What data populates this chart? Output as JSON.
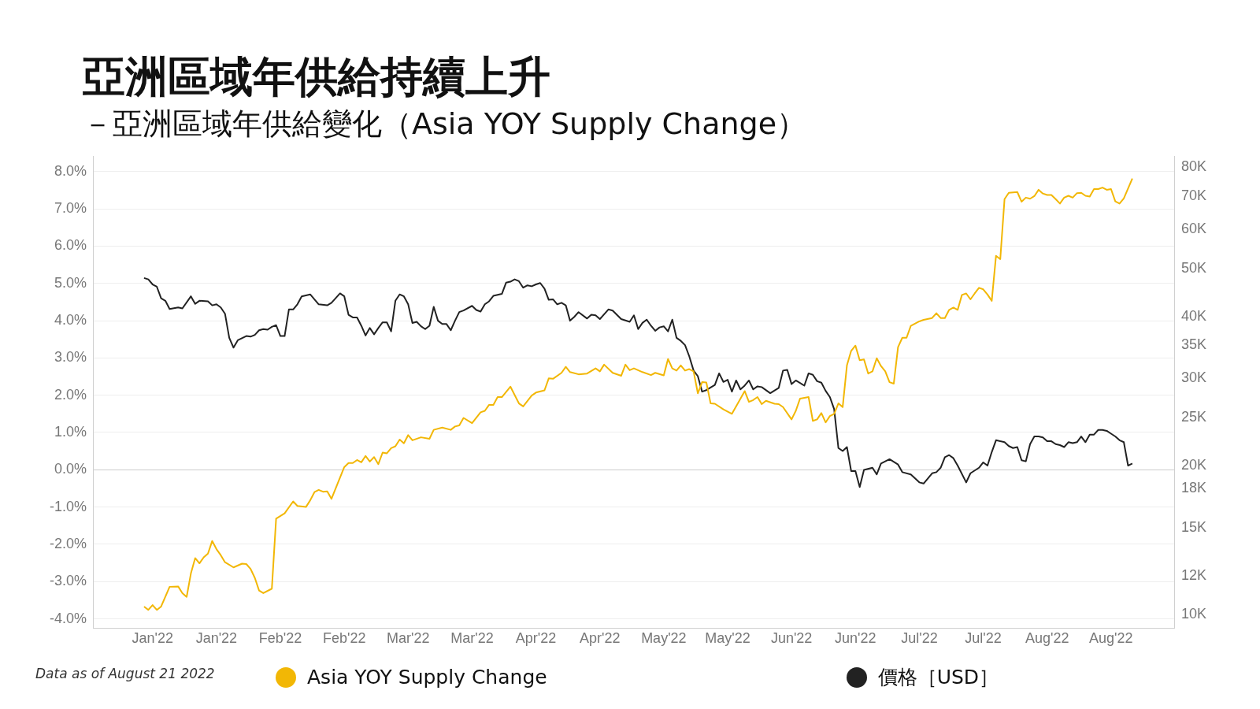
{
  "chart_data": {
    "type": "line",
    "title": "亞洲區域年供給持續上升",
    "subtitle": "－亞洲區域年供給變化（Asia YOY Supply Change）",
    "annotations": [
      "Data as of August 21 2022"
    ],
    "xlim": [
      "2021-12-20",
      "2022-08-31"
    ],
    "xticks": [
      {
        "value": "2022-01-03",
        "label": "Jan'22"
      },
      {
        "value": "2022-01-18",
        "label": "Jan'22"
      },
      {
        "value": "2022-02-02",
        "label": "Feb'22"
      },
      {
        "value": "2022-02-17",
        "label": "Feb'22"
      },
      {
        "value": "2022-03-04",
        "label": "Mar'22"
      },
      {
        "value": "2022-03-19",
        "label": "Mar'22"
      },
      {
        "value": "2022-04-03",
        "label": "Apr'22"
      },
      {
        "value": "2022-04-18",
        "label": "Apr'22"
      },
      {
        "value": "2022-05-03",
        "label": "May'22"
      },
      {
        "value": "2022-05-18",
        "label": "May'22"
      },
      {
        "value": "2022-06-02",
        "label": "Jun'22"
      },
      {
        "value": "2022-06-17",
        "label": "Jun'22"
      },
      {
        "value": "2022-07-02",
        "label": "Jul'22"
      },
      {
        "value": "2022-07-17",
        "label": "Jul'22"
      },
      {
        "value": "2022-08-01",
        "label": "Aug'22"
      },
      {
        "value": "2022-08-16",
        "label": "Aug'22"
      }
    ],
    "ylim": [
      -4.25,
      8.4
    ],
    "yticks": [
      {
        "value": -4,
        "label": "-4.0%"
      },
      {
        "value": -3,
        "label": "-3.0%"
      },
      {
        "value": -2,
        "label": "-2.0%"
      },
      {
        "value": -1,
        "label": "-1.0%"
      },
      {
        "value": 0,
        "label": "0.0%"
      },
      {
        "value": 1,
        "label": "1.0%"
      },
      {
        "value": 2,
        "label": "2.0%"
      },
      {
        "value": 3,
        "label": "3.0%"
      },
      {
        "value": 4,
        "label": "4.0%"
      },
      {
        "value": 5,
        "label": "5.0%"
      },
      {
        "value": 6,
        "label": "6.0%"
      },
      {
        "value": 7,
        "label": "7.0%"
      },
      {
        "value": 8,
        "label": "8.0%"
      }
    ],
    "y2lim": [
      9400,
      84000
    ],
    "y2ticks": [
      {
        "value": 10000,
        "label": "10K"
      },
      {
        "value": 12000,
        "label": "12K"
      },
      {
        "value": 15000,
        "label": "15K"
      },
      {
        "value": 18000,
        "label": "18K"
      },
      {
        "value": 20000,
        "label": "20K"
      },
      {
        "value": 25000,
        "label": "25K"
      },
      {
        "value": 30000,
        "label": "30K"
      },
      {
        "value": 35000,
        "label": "35K"
      },
      {
        "value": 40000,
        "label": "40K"
      },
      {
        "value": 50000,
        "label": "50K"
      },
      {
        "value": 60000,
        "label": "60K"
      },
      {
        "value": 70000,
        "label": "70K"
      },
      {
        "value": 80000,
        "label": "80K"
      }
    ],
    "log": "y2",
    "grid": "y",
    "legend": "bottom",
    "marker": "none",
    "line_style": "solid",
    "series": [
      {
        "name": "Asia YOY Supply Change",
        "color": "#f2b705",
        "x": [
          "2022-01-01",
          "2022-01-02",
          "2022-01-03",
          "2022-01-04",
          "2022-01-05",
          "2022-01-07",
          "2022-01-09",
          "2022-01-10",
          "2022-01-11",
          "2022-01-12",
          "2022-01-13",
          "2022-01-14",
          "2022-01-15",
          "2022-01-16",
          "2022-01-17",
          "2022-01-18",
          "2022-01-19",
          "2022-01-20",
          "2022-01-22",
          "2022-01-24",
          "2022-01-25",
          "2022-01-26",
          "2022-01-27",
          "2022-01-28",
          "2022-01-29",
          "2022-01-31",
          "2022-02-01",
          "2022-02-03",
          "2022-02-05",
          "2022-02-06",
          "2022-02-08",
          "2022-02-09",
          "2022-02-10",
          "2022-02-11",
          "2022-02-12",
          "2022-02-13",
          "2022-02-14",
          "2022-02-17",
          "2022-02-18",
          "2022-02-19",
          "2022-02-20",
          "2022-02-21",
          "2022-02-22",
          "2022-02-23",
          "2022-02-24",
          "2022-02-25",
          "2022-02-26",
          "2022-02-27",
          "2022-02-28",
          "2022-03-01",
          "2022-03-02",
          "2022-03-03",
          "2022-03-04",
          "2022-03-05",
          "2022-03-07",
          "2022-03-09",
          "2022-03-10",
          "2022-03-12",
          "2022-03-14",
          "2022-03-15",
          "2022-03-16",
          "2022-03-17",
          "2022-03-19",
          "2022-03-21",
          "2022-03-22",
          "2022-03-23",
          "2022-03-24",
          "2022-03-25",
          "2022-03-26",
          "2022-03-28",
          "2022-03-30",
          "2022-03-31",
          "2022-04-02",
          "2022-04-03",
          "2022-04-05",
          "2022-04-06",
          "2022-04-07",
          "2022-04-09",
          "2022-04-10",
          "2022-04-11",
          "2022-04-13",
          "2022-04-15",
          "2022-04-17",
          "2022-04-18",
          "2022-04-19",
          "2022-04-21",
          "2022-04-23",
          "2022-04-24",
          "2022-04-25",
          "2022-04-26",
          "2022-04-28",
          "2022-04-30",
          "2022-05-01",
          "2022-05-03",
          "2022-05-04",
          "2022-05-05",
          "2022-05-06",
          "2022-05-07",
          "2022-05-08",
          "2022-05-09",
          "2022-05-10",
          "2022-05-11",
          "2022-05-12",
          "2022-05-13",
          "2022-05-14",
          "2022-05-15",
          "2022-05-17",
          "2022-05-19",
          "2022-05-20",
          "2022-05-22",
          "2022-05-23",
          "2022-05-24",
          "2022-05-25",
          "2022-05-26",
          "2022-05-27",
          "2022-05-29",
          "2022-05-30",
          "2022-05-31",
          "2022-06-02",
          "2022-06-03",
          "2022-06-04",
          "2022-06-06",
          "2022-06-07",
          "2022-06-08",
          "2022-06-09",
          "2022-06-10",
          "2022-06-11",
          "2022-06-12",
          "2022-06-13",
          "2022-06-14",
          "2022-06-15",
          "2022-06-16",
          "2022-06-17",
          "2022-06-18",
          "2022-06-19",
          "2022-06-20",
          "2022-06-21",
          "2022-06-22",
          "2022-06-23",
          "2022-06-24",
          "2022-06-25",
          "2022-06-26",
          "2022-06-27",
          "2022-06-28",
          "2022-06-29",
          "2022-06-30",
          "2022-07-02",
          "2022-07-03",
          "2022-07-05",
          "2022-07-06",
          "2022-07-07",
          "2022-07-08",
          "2022-07-09",
          "2022-07-10",
          "2022-07-11",
          "2022-07-12",
          "2022-07-13",
          "2022-07-14",
          "2022-07-15",
          "2022-07-16",
          "2022-07-17",
          "2022-07-18",
          "2022-07-19",
          "2022-07-20",
          "2022-07-21",
          "2022-07-22",
          "2022-07-23",
          "2022-07-25",
          "2022-07-26",
          "2022-07-27",
          "2022-07-28",
          "2022-07-29",
          "2022-07-30",
          "2022-07-31",
          "2022-08-01",
          "2022-08-02",
          "2022-08-03",
          "2022-08-04",
          "2022-08-05",
          "2022-08-06",
          "2022-08-07",
          "2022-08-08",
          "2022-08-09",
          "2022-08-10",
          "2022-08-11",
          "2022-08-12",
          "2022-08-13",
          "2022-08-14",
          "2022-08-15",
          "2022-08-16",
          "2022-08-17",
          "2022-08-18",
          "2022-08-19",
          "2022-08-21"
        ],
        "values": [
          -3.67,
          -3.76,
          -3.63,
          -3.76,
          -3.67,
          -3.14,
          -3.13,
          -3.31,
          -3.41,
          -2.78,
          -2.37,
          -2.51,
          -2.35,
          -2.25,
          -1.91,
          -2.13,
          -2.29,
          -2.48,
          -2.62,
          -2.52,
          -2.53,
          -2.66,
          -2.9,
          -3.24,
          -3.31,
          -3.19,
          -1.31,
          -1.17,
          -0.85,
          -0.97,
          -1.0,
          -0.82,
          -0.6,
          -0.54,
          -0.59,
          -0.58,
          -0.78,
          0.07,
          0.18,
          0.18,
          0.26,
          0.2,
          0.37,
          0.22,
          0.34,
          0.15,
          0.46,
          0.44,
          0.58,
          0.63,
          0.81,
          0.71,
          0.93,
          0.79,
          0.87,
          0.83,
          1.07,
          1.13,
          1.07,
          1.16,
          1.19,
          1.39,
          1.25,
          1.54,
          1.58,
          1.74,
          1.74,
          1.95,
          1.95,
          2.23,
          1.78,
          1.7,
          1.99,
          2.07,
          2.13,
          2.45,
          2.44,
          2.6,
          2.76,
          2.62,
          2.56,
          2.58,
          2.72,
          2.64,
          2.82,
          2.6,
          2.52,
          2.82,
          2.67,
          2.72,
          2.62,
          2.54,
          2.6,
          2.53,
          2.97,
          2.72,
          2.66,
          2.8,
          2.66,
          2.7,
          2.64,
          2.05,
          2.35,
          2.34,
          1.78,
          1.77,
          1.62,
          1.5,
          1.7,
          2.11,
          1.82,
          1.87,
          1.95,
          1.76,
          1.85,
          1.77,
          1.76,
          1.68,
          1.35,
          1.58,
          1.91,
          1.95,
          1.31,
          1.35,
          1.52,
          1.27,
          1.44,
          1.5,
          1.78,
          1.68,
          2.8,
          3.19,
          3.33,
          2.94,
          2.96,
          2.58,
          2.64,
          2.99,
          2.78,
          2.64,
          2.35,
          2.31,
          3.29,
          3.54,
          3.54,
          3.86,
          3.98,
          4.02,
          4.07,
          4.2,
          4.07,
          4.07,
          4.29,
          4.35,
          4.29,
          4.69,
          4.73,
          4.57,
          4.73,
          4.88,
          4.84,
          4.7,
          4.53,
          5.74,
          5.65,
          7.26,
          7.43,
          7.45,
          7.19,
          7.3,
          7.27,
          7.34,
          7.51,
          7.41,
          7.37,
          7.37,
          7.26,
          7.14,
          7.3,
          7.35,
          7.3,
          7.42,
          7.43,
          7.35,
          7.33,
          7.53,
          7.53,
          7.57,
          7.51,
          7.53,
          7.2,
          7.14,
          7.28,
          7.81
        ]
      },
      {
        "name": "價格［USD］",
        "color": "#222222",
        "axis": "y2",
        "x": [
          "2022-01-01",
          "2022-01-02",
          "2022-01-03",
          "2022-01-04",
          "2022-01-05",
          "2022-01-06",
          "2022-01-07",
          "2022-01-09",
          "2022-01-10",
          "2022-01-12",
          "2022-01-13",
          "2022-01-14",
          "2022-01-16",
          "2022-01-17",
          "2022-01-18",
          "2022-01-19",
          "2022-01-20",
          "2022-01-21",
          "2022-01-22",
          "2022-01-23",
          "2022-01-25",
          "2022-01-26",
          "2022-01-27",
          "2022-01-28",
          "2022-01-29",
          "2022-01-30",
          "2022-01-31",
          "2022-02-01",
          "2022-02-02",
          "2022-02-03",
          "2022-02-04",
          "2022-02-05",
          "2022-02-06",
          "2022-02-07",
          "2022-02-09",
          "2022-02-11",
          "2022-02-13",
          "2022-02-14",
          "2022-02-16",
          "2022-02-17",
          "2022-02-18",
          "2022-02-19",
          "2022-02-20",
          "2022-02-21",
          "2022-02-22",
          "2022-02-23",
          "2022-02-24",
          "2022-02-25",
          "2022-02-26",
          "2022-02-27",
          "2022-02-28",
          "2022-03-01",
          "2022-03-02",
          "2022-03-03",
          "2022-03-04",
          "2022-03-05",
          "2022-03-06",
          "2022-03-07",
          "2022-03-08",
          "2022-03-09",
          "2022-03-10",
          "2022-03-11",
          "2022-03-12",
          "2022-03-13",
          "2022-03-14",
          "2022-03-15",
          "2022-03-16",
          "2022-03-17",
          "2022-03-19",
          "2022-03-20",
          "2022-03-21",
          "2022-03-22",
          "2022-03-23",
          "2022-03-24",
          "2022-03-26",
          "2022-03-27",
          "2022-03-28",
          "2022-03-29",
          "2022-03-30",
          "2022-03-31",
          "2022-04-01",
          "2022-04-02",
          "2022-04-03",
          "2022-04-04",
          "2022-04-05",
          "2022-04-06",
          "2022-04-07",
          "2022-04-08",
          "2022-04-09",
          "2022-04-10",
          "2022-04-11",
          "2022-04-12",
          "2022-04-13",
          "2022-04-15",
          "2022-04-16",
          "2022-04-17",
          "2022-04-18",
          "2022-04-20",
          "2022-04-21",
          "2022-04-23",
          "2022-04-25",
          "2022-04-26",
          "2022-04-27",
          "2022-04-28",
          "2022-04-29",
          "2022-04-30",
          "2022-05-01",
          "2022-05-02",
          "2022-05-03",
          "2022-05-04",
          "2022-05-05",
          "2022-05-06",
          "2022-05-07",
          "2022-05-08",
          "2022-05-09",
          "2022-05-10",
          "2022-05-11",
          "2022-05-12",
          "2022-05-13",
          "2022-05-15",
          "2022-05-16",
          "2022-05-17",
          "2022-05-18",
          "2022-05-19",
          "2022-05-20",
          "2022-05-21",
          "2022-05-22",
          "2022-05-23",
          "2022-05-24",
          "2022-05-25",
          "2022-05-26",
          "2022-05-28",
          "2022-05-30",
          "2022-05-31",
          "2022-06-01",
          "2022-06-02",
          "2022-06-03",
          "2022-06-05",
          "2022-06-06",
          "2022-06-07",
          "2022-06-08",
          "2022-06-09",
          "2022-06-10",
          "2022-06-11",
          "2022-06-12",
          "2022-06-13",
          "2022-06-14",
          "2022-06-15",
          "2022-06-16",
          "2022-06-17",
          "2022-06-18",
          "2022-06-19",
          "2022-06-21",
          "2022-06-22",
          "2022-06-23",
          "2022-06-25",
          "2022-06-27",
          "2022-06-28",
          "2022-06-30",
          "2022-07-02",
          "2022-07-03",
          "2022-07-05",
          "2022-07-06",
          "2022-07-07",
          "2022-07-08",
          "2022-07-09",
          "2022-07-10",
          "2022-07-11",
          "2022-07-13",
          "2022-07-14",
          "2022-07-16",
          "2022-07-17",
          "2022-07-18",
          "2022-07-19",
          "2022-07-20",
          "2022-07-22",
          "2022-07-23",
          "2022-07-24",
          "2022-07-25",
          "2022-07-26",
          "2022-07-27",
          "2022-07-28",
          "2022-07-29",
          "2022-07-30",
          "2022-07-31",
          "2022-08-01",
          "2022-08-02",
          "2022-08-03",
          "2022-08-04",
          "2022-08-05",
          "2022-08-06",
          "2022-08-07",
          "2022-08-08",
          "2022-08-09",
          "2022-08-10",
          "2022-08-11",
          "2022-08-12",
          "2022-08-13",
          "2022-08-14",
          "2022-08-15",
          "2022-08-16",
          "2022-08-17",
          "2022-08-18",
          "2022-08-19",
          "2022-08-20",
          "2022-08-21"
        ],
        "values": [
          47800,
          47500,
          46400,
          45900,
          43500,
          43000,
          41400,
          41700,
          41500,
          43900,
          42400,
          43000,
          42900,
          42100,
          42300,
          41700,
          40500,
          36200,
          34600,
          35800,
          36500,
          36400,
          36700,
          37500,
          37700,
          37600,
          38100,
          38400,
          36500,
          36500,
          41300,
          41300,
          42300,
          43900,
          44300,
          42300,
          42100,
          42600,
          44500,
          43900,
          40300,
          39800,
          39800,
          38300,
          36600,
          37900,
          36800,
          37900,
          38900,
          38900,
          37300,
          43000,
          44300,
          43900,
          42300,
          38800,
          39000,
          38200,
          37700,
          38300,
          41800,
          39200,
          38600,
          38600,
          37500,
          39200,
          40800,
          41100,
          42000,
          41200,
          40900,
          42300,
          42900,
          44000,
          44400,
          46800,
          47000,
          47500,
          47100,
          45700,
          46200,
          46000,
          46400,
          46700,
          45500,
          43200,
          43300,
          42300,
          42600,
          42100,
          39200,
          39900,
          40800,
          39600,
          40300,
          40200,
          39500,
          41300,
          41100,
          39500,
          39000,
          40200,
          37700,
          38800,
          39400,
          38300,
          37400,
          38000,
          38200,
          37300,
          39400,
          36200,
          35700,
          35000,
          33200,
          31100,
          30300,
          28200,
          28400,
          29100,
          30700,
          29500,
          29800,
          28200,
          29700,
          28500,
          29000,
          29700,
          28500,
          28900,
          28800,
          28000,
          28700,
          31100,
          31200,
          29200,
          29700,
          29000,
          30700,
          30500,
          29600,
          29400,
          28300,
          27500,
          26000,
          21700,
          21400,
          21800,
          19500,
          19500,
          18100,
          19600,
          19800,
          19200,
          20200,
          20600,
          20100,
          19400,
          19200,
          18500,
          18400,
          19300,
          19400,
          19800,
          20800,
          21000,
          20700,
          20000,
          18500,
          19300,
          19800,
          20300,
          20000,
          21300,
          22500,
          22300,
          21900,
          21700,
          21800,
          20500,
          20400,
          22100,
          22900,
          22900,
          22800,
          22400,
          22400,
          22100,
          22000,
          21800,
          22300,
          22200,
          22300,
          22900,
          22300,
          23100,
          23100,
          23600,
          23600,
          23500,
          23200,
          22900,
          22500,
          22300,
          20000,
          20200
        ]
      }
    ]
  }
}
